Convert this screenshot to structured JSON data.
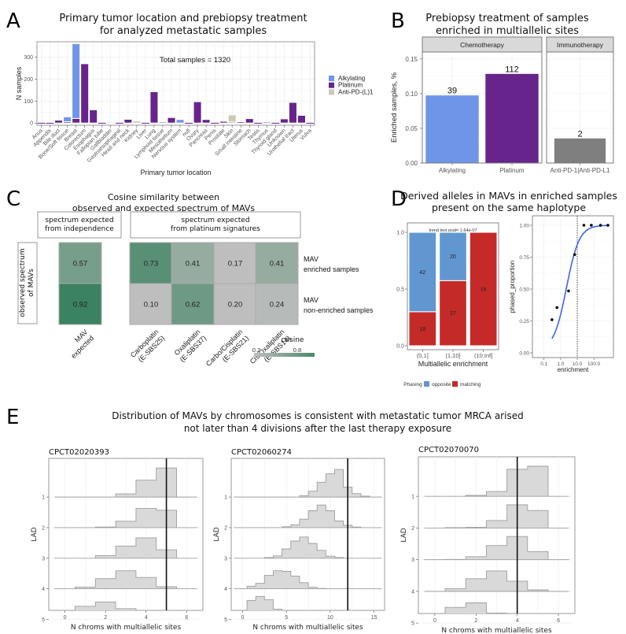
{
  "panels": {
    "A": {
      "letter": "A"
    },
    "B": {
      "letter": "B"
    },
    "C": {
      "letter": "C"
    },
    "D": {
      "letter": "D"
    },
    "E": {
      "letter": "E"
    }
  },
  "chart_data": [
    {
      "id": "A",
      "type": "bar",
      "stacked": true,
      "title": "Primary tumor location and prebiopsy treatment\nfor analyzed metastatic samples",
      "xlabel": "Primary tumor location",
      "ylabel": "N samples",
      "ylim": [
        -10,
        370
      ],
      "yticks": [
        0,
        100,
        200,
        300
      ],
      "annotation": "Total samples =  1320",
      "legend": {
        "position": "right",
        "entries": [
          "Alkylating",
          "Platinum",
          "Anti-PD-(L)1"
        ]
      },
      "colors": {
        "Alkylating": "#6f95e8",
        "Platinum": "#66248c",
        "Anti-PD-(L)1": "#cdc9b2"
      },
      "categories": [
        "Anus",
        "Appendix",
        "Bile duct",
        "Bone/Soft tissue",
        "Breast",
        "Colorectum",
        "Esophagus",
        "Fallopian tube",
        "Gallbladder",
        "Gastroesophageal",
        "Head and neck",
        "Kidney",
        "Liver",
        "Lung",
        "Lymphoid tissue",
        "Mesothelium",
        "Nervous system",
        "null",
        "Ovary",
        "Pancreas",
        "Penis",
        "Prostate",
        "Skin",
        "Small intestine",
        "Stomach",
        "Testis",
        "Thymus",
        "Thyroid gland",
        "Unknown",
        "Urothelial tract",
        "Uterus",
        "Vulva"
      ],
      "series": [
        {
          "name": "Platinum",
          "values": [
            1,
            1,
            13,
            6,
            21,
            270,
            60,
            1,
            4,
            1,
            17,
            0,
            1,
            143,
            0,
            25,
            0,
            1,
            97,
            16,
            2,
            8,
            5,
            6,
            20,
            1,
            5,
            1,
            19,
            94,
            35,
            1
          ]
        },
        {
          "name": "Anti-PD-(L)1",
          "values": [
            0,
            0,
            0,
            0,
            0,
            0,
            0,
            0,
            0,
            0,
            0,
            10,
            0,
            4,
            0,
            0,
            0,
            0,
            0,
            0,
            0,
            0,
            32,
            0,
            0,
            0,
            0,
            0,
            0,
            0,
            0,
            0
          ]
        },
        {
          "name": "Alkylating",
          "values": [
            0,
            0,
            0,
            22,
            340,
            0,
            0,
            0,
            0,
            0,
            0,
            0,
            0,
            0,
            6,
            0,
            16,
            0,
            0,
            0,
            0,
            3,
            4,
            0,
            0,
            0,
            0,
            0,
            0,
            0,
            0,
            0
          ]
        }
      ],
      "grid": true
    },
    {
      "id": "B",
      "type": "bar",
      "title": "Prebiopsy treatment of samples\nenriched in multiallelic sites",
      "ylabel": "Enriched samples, %",
      "ylim": [
        0,
        0.16
      ],
      "yticks": [
        "0.00",
        "0.05",
        "0.10",
        "0.15"
      ],
      "facets": [
        {
          "label": "Chemotherapy",
          "categories": [
            "Alkylating",
            "Platinum"
          ],
          "values": [
            0.098,
            0.129
          ],
          "labels": [
            "39",
            "112"
          ],
          "colors": [
            "#6f95e8",
            "#66248c"
          ]
        },
        {
          "label": "Immunotherapy",
          "categories": [
            "Anti-PD-1|Anti-PD-L1"
          ],
          "values": [
            0.036
          ],
          "labels": [
            "2"
          ],
          "colors": [
            "#7f7f7f"
          ]
        }
      ],
      "grid": true
    },
    {
      "id": "C",
      "type": "heatmap",
      "title": "Cosine similarity between\nobserved and expected spectrum of MAVs",
      "col_groups": [
        {
          "label": "spectrum expected\nfrom independence",
          "columns": [
            "MAV\nexpected"
          ]
        },
        {
          "label": "spectrum expected\nfrom platinum signatures",
          "columns": [
            "Carboplatin\n(E-SBS25)",
            "Oxaliplatin\n(E-SBS37)",
            "Carbo/Cisplatin\n(E-SBS21)",
            "Cis/Oxaliplatin\n(E-SBS14)"
          ]
        }
      ],
      "row_group_label": "observed spectrum\nof MAVs",
      "rows": [
        "MAV\nenriched samples",
        "MAV\nnon-enriched samples"
      ],
      "values": [
        [
          0.57,
          0.73,
          0.41,
          0.17,
          0.41
        ],
        [
          0.92,
          0.1,
          0.62,
          0.2,
          0.24
        ]
      ],
      "cell_labels": [
        [
          "0.57",
          "0.73",
          "0.41",
          "0.17",
          "0.41"
        ],
        [
          "0.92",
          "0.10",
          "0.62",
          "0.20",
          "0.24"
        ]
      ],
      "legend": {
        "title": "cosine",
        "ticks": [
          "0.2",
          "0.8"
        ],
        "range": [
          0.2,
          0.8
        ],
        "low_color": "#bebebe",
        "high_color": "#4b8a6c",
        "position": "bottom-right"
      }
    },
    {
      "id": "D",
      "title": "Derived alleles in MAVs in enriched samples\npresent on the same haplotype",
      "subplots": [
        {
          "type": "bar",
          "stacked": true,
          "annotation": "trend test pval= 1.64e-07",
          "xlabel": "Multiallelic enrichment",
          "ylabel": "",
          "ylim": [
            0,
            1
          ],
          "yticks": [
            "0.0",
            "0.5",
            "1.0"
          ],
          "categories": [
            "(0,1]",
            "(1,10]",
            "(10,Inf]"
          ],
          "series": [
            {
              "name": "matching",
              "values": [
                0.3,
                0.574,
                1.0
              ],
              "counts": [
                "18",
                "27",
                "16"
              ],
              "color": "#c42b28"
            },
            {
              "name": "opposite",
              "values": [
                0.7,
                0.426,
                0.0
              ],
              "counts": [
                "42",
                "20",
                ""
              ],
              "color": "#6197d1"
            }
          ],
          "legend": {
            "title": "Phasing",
            "entries": [
              "opposite",
              "matching"
            ],
            "position": "bottom"
          }
        },
        {
          "type": "scatter",
          "xlabel": "enrichment",
          "ylabel": "phased_proportion",
          "xscale": "log10",
          "xlim": [
            0.02,
            1500
          ],
          "ylim": [
            0,
            1.0
          ],
          "xticks": [
            "0.1",
            "1.0",
            "10.0",
            "100.0"
          ],
          "yticks": [
            "0.00",
            "0.25",
            "0.50",
            "0.75",
            "1.00"
          ],
          "points": [
            [
              0.3,
              0.26
            ],
            [
              0.6,
              0.355
            ],
            [
              3,
              0.485
            ],
            [
              7,
              0.77
            ],
            [
              25,
              1.0
            ],
            [
              70,
              1.0
            ],
            [
              250,
              1.0
            ],
            [
              700,
              1.0
            ]
          ],
          "fit": {
            "type": "logistic",
            "color": "#3a66e6"
          },
          "vline": {
            "x": 10,
            "style": "dotted"
          }
        }
      ]
    },
    {
      "id": "E",
      "type": "histogram",
      "title": "Distribution of MAVs by chromosomes is consistent with metastatic tumor MRCA arised\nnot later than 4 divisions after the last therapy exposure",
      "xlabel": "N chroms with multiallelic sites",
      "ylabel": "LAD",
      "rows": [
        "1",
        "2",
        "3",
        "4",
        "5"
      ],
      "plots": [
        {
          "sample": "CPCT02020393",
          "xlim": [
            -0.8,
            6.8
          ],
          "xticks": [
            0,
            2,
            4,
            6
          ],
          "vline": 5,
          "bin_start": 0,
          "densities": [
            [
              0,
              0,
              0,
              0.11,
              0.58,
              1.0,
              0
            ],
            [
              0,
              0,
              0.02,
              0.22,
              0.66,
              0.6,
              0
            ],
            [
              0,
              0,
              0.09,
              0.42,
              0.7,
              0.29,
              0
            ],
            [
              0,
              0.06,
              0.35,
              0.62,
              0.39,
              0.07,
              0
            ],
            [
              0,
              0.45,
              0.6,
              0.37,
              0.1,
              0.02,
              0
            ]
          ]
        },
        {
          "sample": "CPCT02060274",
          "xlim": [
            -1.3,
            16.2
          ],
          "xticks": [
            0,
            5,
            10,
            15
          ],
          "vline": 12,
          "bin_start": 0,
          "densities": [
            [
              0,
              0,
              0,
              0,
              0,
              0,
              0,
              0.05,
              0.2,
              0.51,
              0.8,
              0.95,
              0.34,
              0.12,
              0.03,
              0
            ],
            [
              0,
              0,
              0,
              0,
              0,
              0.03,
              0.1,
              0.29,
              0.58,
              0.78,
              0.58,
              0.23,
              0.08,
              0.02,
              0,
              0
            ],
            [
              0,
              0,
              0,
              0.02,
              0.08,
              0.32,
              0.59,
              0.73,
              0.51,
              0.27,
              0.07,
              0.02,
              0,
              0,
              0,
              0
            ],
            [
              0,
              0.09,
              0.19,
              0.46,
              0.62,
              0.6,
              0.44,
              0.21,
              0.05,
              0.01,
              0,
              0,
              0,
              0,
              0,
              0
            ],
            [
              0,
              0.65,
              0.79,
              0.68,
              0.35,
              0.17,
              0.04,
              0,
              0,
              0,
              0,
              0,
              0,
              0,
              0,
              0
            ]
          ]
        },
        {
          "sample": "CPCT02070070",
          "xlim": [
            -0.8,
            6.8
          ],
          "xticks": [
            0,
            2,
            4,
            6
          ],
          "vline": 4,
          "bin_start": 0,
          "densities": [
            [
              0,
              0,
              0.03,
              0.16,
              0.9,
              1.0,
              0
            ],
            [
              0,
              0.01,
              0.02,
              0.25,
              0.77,
              0.58,
              0
            ],
            [
              0,
              0.01,
              0.1,
              0.47,
              0.77,
              0.27,
              0
            ],
            [
              0,
              0.09,
              0.42,
              0.68,
              0.34,
              0.05,
              0
            ],
            [
              0,
              0.52,
              0.67,
              0.33,
              0.09,
              0,
              0
            ]
          ]
        }
      ]
    }
  ]
}
